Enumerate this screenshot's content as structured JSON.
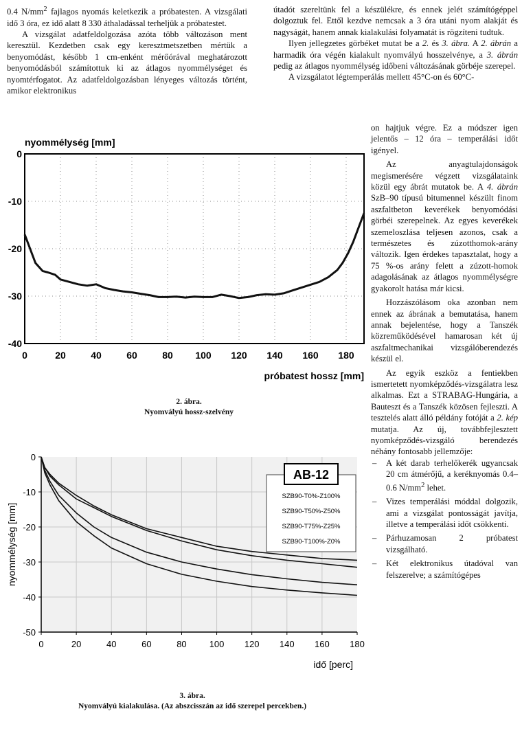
{
  "left_col": {
    "p1_a": "0.4 N/mm",
    "p1_sup": "2",
    "p1_b": " fajlagos nyomás keletkezik a próbatesten. A vizsgálati idő 3 óra, ez idő alatt 8 330 áthaladással terheljük a próbatestet.",
    "p2": "A vizsgálat adatfeldolgozása azóta több változáson ment keresztül. Kezdetben csak egy keresztmetszetben mértük a benyomódást, később 1 cm-enként mérőórával meghatározott benyomódásból számítottuk ki az átlagos nyommélységet és nyomtérfogatot. Az adatfeldolgozásban lényeges változás történt, amikor elektronikus"
  },
  "right_col": {
    "p1": "útadót szereltünk fel a készülékre, és ennek jelét számítógéppel dolgoztuk fel. Ettől kezdve nemcsak a 3 óra utáni nyom alakját és nagyságát, hanem annak kialakulási folyamatát is rögzíteni tudtuk.",
    "p2_a": "Ilyen jellegzetes görbéket mutat be a ",
    "p2_i1": "2.",
    "p2_b": " és ",
    "p2_i2": "3. ábra.",
    "p2_c": " A ",
    "p2_i3": "2. ábrán",
    "p2_d": " a harmadik óra végén kialakult nyomvályú hosszelvénye, a ",
    "p2_i4": "3. ábrán",
    "p2_e": " pedig az átlagos nyommélység időbeni változásának görbéje szerepel.",
    "p3_a": "A vizsgálatot légtemperálás mellett 45°C-on és 60°C-"
  },
  "right_narrow": {
    "p3_b": "on hajtjuk végre. Ez a módszer igen jelentős – 12 óra – temperálási időt igényel.",
    "p4_a": "Az anyagtulajdonságok megismerésére végzett vizsgálataink közül egy ábrát mutatok be. A ",
    "p4_i1": "4. ábrán",
    "p4_b": " SzB–90 típusú bitumennel készült finom aszfaltbeton keverékek benyomódási görbéi szerepelnek. Az egyes keverékek szemeloszlása teljesen azonos, csak a természetes és zúzotthomok-arány változik. Igen érdekes tapasztalat, hogy a 75 %-os arány felett a zúzott-homok adagolásának az átlagos nyommélységre gyakorolt hatása már kicsi.",
    "p5": "Hozzászólásom oka azonban nem ennek az ábrának a bemutatása, hanem annak bejelentése, hogy a Tanszék közreműködésével hamarosan két új aszfaltmechanikai vizsgálóberendezés készül el.",
    "p6_a": "Az egyik eszköz a fentiekben ismertetett nyomképződés-vizsgálatra lesz alkalmas. Ezt a STRABAG-Hungária, a Bauteszt és a Tanszék közösen fejleszti. A tesztelés alatt álló példány fotóját a ",
    "p6_i1": "2. kép",
    "p6_b": " mutatja. Az új, továbbfejlesztett nyomképződés-vizsgáló berendezés néhány fontosabb jellemzője:",
    "bullets": [
      {
        "a": "A két darab terhelőkerék ugyancsak 20 cm átmérőjű, a keréknyomás 0.4–0.6 N/mm",
        "sup": "2",
        "b": " lehet."
      },
      {
        "a": "Vizes temperálási móddal dolgozik, ami a vizsgálat pontosságát javítja, illetve a temperálási időt csökkenti.",
        "sup": "",
        "b": ""
      },
      {
        "a": "Párhuzamosan 2 próbatest vizsgálható.",
        "sup": "",
        "b": ""
      },
      {
        "a": "Két elektronikus útadóval van felszerelve; a számítógépes",
        "sup": "",
        "b": ""
      }
    ]
  },
  "figure2": {
    "caption_num": "2. ábra.",
    "caption_text": "Nyomvályú hossz-szelvény"
  },
  "figure3": {
    "caption_num": "3. ábra.",
    "caption_text": "Nyomvályú kialakulása. (Az abszcisszán az idő szerepel percekben.)"
  },
  "chart_data": [
    {
      "type": "line",
      "title": "",
      "ylabel": "nyommélység [mm]",
      "xlabel": "próbatest hossz [mm]",
      "xlim": [
        0,
        190
      ],
      "ylim": [
        -40,
        0
      ],
      "xticks": [
        0,
        20,
        40,
        60,
        80,
        100,
        120,
        140,
        160,
        180
      ],
      "xtick_labels": [
        "0",
        "20",
        "40",
        "60",
        "80",
        "100",
        "120",
        "140",
        "160",
        "180"
      ],
      "yticks": [
        0,
        -10,
        -20,
        -30,
        -40
      ],
      "ytick_labels": [
        "0",
        "-10",
        "-20",
        "-30",
        "-40"
      ],
      "grid": true,
      "series": [
        {
          "x": [
            0,
            3,
            6,
            10,
            13,
            17,
            20,
            25,
            30,
            35,
            40,
            45,
            50,
            55,
            60,
            65,
            70,
            75,
            80,
            85,
            90,
            95,
            100,
            105,
            110,
            115,
            120,
            125,
            130,
            135,
            140,
            145,
            150,
            155,
            160,
            165,
            170,
            175,
            178,
            181,
            184,
            187,
            190
          ],
          "y": [
            -17,
            -20,
            -23,
            -24.7,
            -25,
            -25.5,
            -26.5,
            -27,
            -27.5,
            -27.8,
            -27.5,
            -28.3,
            -28.7,
            -29,
            -29.2,
            -29.5,
            -29.8,
            -30.2,
            -30.2,
            -30.1,
            -30.3,
            -30.1,
            -30.2,
            -30.2,
            -29.7,
            -30,
            -30.4,
            -30.2,
            -29.8,
            -29.6,
            -29.7,
            -29.4,
            -28.8,
            -28.2,
            -27.6,
            -27,
            -26,
            -24.5,
            -23,
            -21,
            -18.5,
            -15.5,
            -12.5
          ]
        }
      ]
    },
    {
      "type": "line",
      "title": "",
      "ylabel": "nyommélység [mm]",
      "xlabel": "idő [perc]",
      "xlim": [
        0,
        180
      ],
      "ylim": [
        -50,
        0
      ],
      "xticks": [
        0,
        20,
        40,
        60,
        80,
        100,
        120,
        140,
        160,
        180
      ],
      "xtick_labels": [
        "0",
        "20",
        "40",
        "60",
        "80",
        "100",
        "120",
        "140",
        "160",
        "180"
      ],
      "yticks": [
        0,
        -10,
        -20,
        -30,
        -40,
        -50
      ],
      "ytick_labels": [
        "0",
        "-10",
        "-20",
        "-30",
        "-40",
        "-50"
      ],
      "grid": true,
      "legend_title": "AB-12",
      "legend_position": "top-right",
      "series": [
        {
          "name": "SZB90-T0%-Z100%",
          "x": [
            0,
            2,
            5,
            10,
            20,
            30,
            40,
            60,
            80,
            100,
            120,
            140,
            160,
            180
          ],
          "y": [
            0,
            -3,
            -5.5,
            -8,
            -12,
            -14.5,
            -17,
            -21,
            -24,
            -26.5,
            -28.2,
            -29.5,
            -30.5,
            -31.5
          ]
        },
        {
          "name": "SZB90-T50%-Z50%",
          "x": [
            0,
            2,
            5,
            10,
            20,
            30,
            40,
            60,
            80,
            100,
            120,
            140,
            160,
            180
          ],
          "y": [
            0,
            -3,
            -5,
            -7.5,
            -11,
            -14,
            -16.5,
            -20.5,
            -23,
            -25.5,
            -27,
            -28,
            -29,
            -29.5
          ]
        },
        {
          "name": "SZB90-T75%-Z25%",
          "x": [
            0,
            2,
            5,
            10,
            20,
            30,
            40,
            60,
            80,
            100,
            120,
            140,
            160,
            180
          ],
          "y": [
            0,
            -3.8,
            -7,
            -11,
            -16,
            -20,
            -23,
            -27.2,
            -30,
            -32,
            -33.6,
            -34.8,
            -35.8,
            -36.5
          ]
        },
        {
          "name": "SZB90-T100%-Z0%",
          "x": [
            0,
            2,
            5,
            10,
            20,
            30,
            40,
            60,
            80,
            100,
            120,
            140,
            160,
            180
          ],
          "y": [
            0,
            -4.5,
            -8,
            -12.5,
            -18.5,
            -22.5,
            -26,
            -30.5,
            -33.5,
            -35.5,
            -37,
            -38,
            -38.8,
            -39.5
          ]
        }
      ]
    }
  ]
}
